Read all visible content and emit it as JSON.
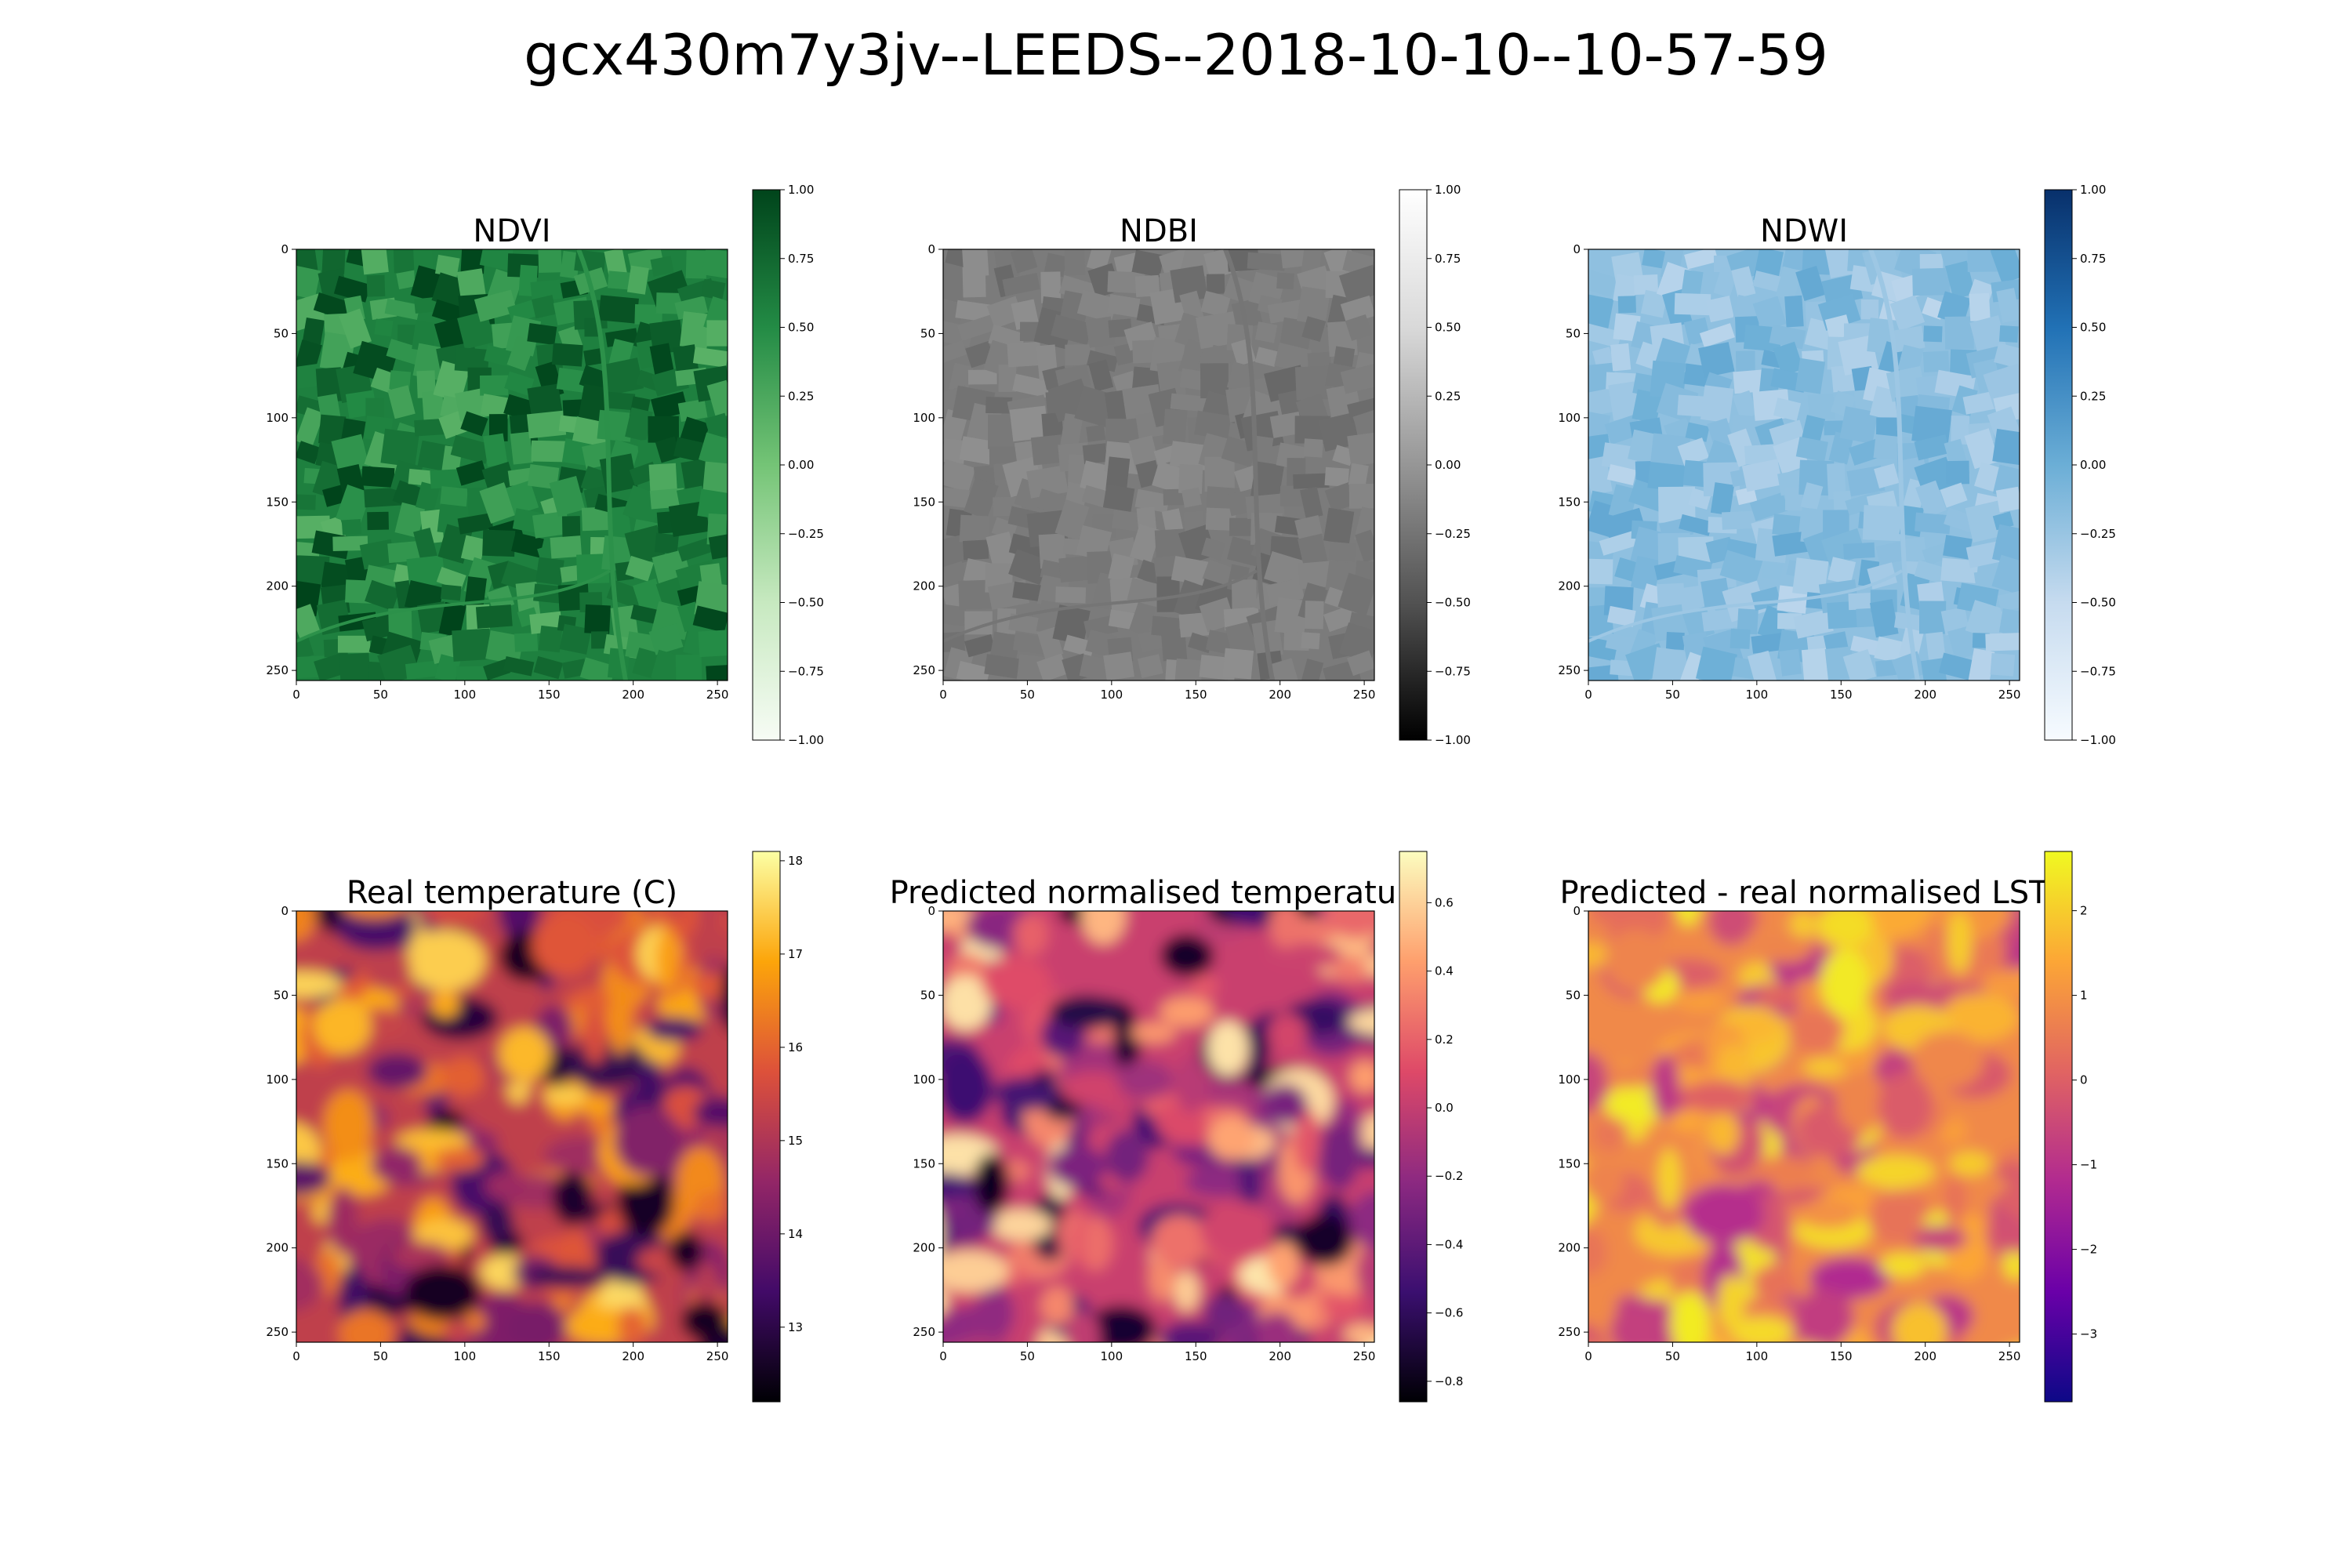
{
  "figure": {
    "title": "gcx430m7y3jv--LEEDS--2018-10-10--10-57-59"
  },
  "colormaps": {
    "Greens": [
      "#f7fcf5",
      "#c7e9c0",
      "#74c476",
      "#238b45",
      "#00441b"
    ],
    "Greys": [
      "#000000",
      "#525252",
      "#969696",
      "#d9d9d9",
      "#ffffff"
    ],
    "Blues": [
      "#f7fbff",
      "#c6dbef",
      "#6baed6",
      "#2171b5",
      "#08306b"
    ],
    "inferno": [
      "#000004",
      "#420a68",
      "#932667",
      "#dd513a",
      "#fca50a",
      "#fcffa4"
    ],
    "magma": [
      "#000004",
      "#3b0f70",
      "#8c2981",
      "#de4968",
      "#fe9f6d",
      "#fcfdbf"
    ],
    "plasma": [
      "#0d0887",
      "#6a00a8",
      "#b12a90",
      "#e16462",
      "#fca636",
      "#f0f921"
    ]
  },
  "chart_data": [
    {
      "type": "heatmap",
      "title": "NDVI",
      "colormap": "Greens",
      "map_style": "fields",
      "vmin": -1.0,
      "vmax": 1.0,
      "level_range": [
        0.15,
        1.0
      ],
      "xlim": [
        0,
        256
      ],
      "ylim": [
        256,
        0
      ],
      "xticks": [
        "0",
        "50",
        "100",
        "150",
        "200",
        "250"
      ],
      "yticks": [
        "0",
        "50",
        "100",
        "150",
        "200",
        "250"
      ],
      "colorbar_ticks": [
        "1.00",
        "0.75",
        "0.50",
        "0.25",
        "0.00",
        "−0.25",
        "−0.50",
        "−0.75",
        "−1.00"
      ]
    },
    {
      "type": "heatmap",
      "title": "NDBI",
      "colormap": "Greys",
      "map_style": "fields",
      "vmin": -1.0,
      "vmax": 1.0,
      "level_range": [
        -0.35,
        -0.05
      ],
      "xlim": [
        0,
        256
      ],
      "ylim": [
        256,
        0
      ],
      "xticks": [
        "0",
        "50",
        "100",
        "150",
        "200",
        "250"
      ],
      "yticks": [
        "0",
        "50",
        "100",
        "150",
        "200",
        "250"
      ],
      "colorbar_ticks": [
        "1.00",
        "0.75",
        "0.50",
        "0.25",
        "0.00",
        "−0.25",
        "−0.50",
        "−0.75",
        "−1.00"
      ]
    },
    {
      "type": "heatmap",
      "title": "NDWI",
      "colormap": "Blues",
      "map_style": "fields",
      "vmin": -1.0,
      "vmax": 1.0,
      "level_range": [
        -0.45,
        0.05
      ],
      "xlim": [
        0,
        256
      ],
      "ylim": [
        256,
        0
      ],
      "xticks": [
        "0",
        "50",
        "100",
        "150",
        "200",
        "250"
      ],
      "yticks": [
        "0",
        "50",
        "100",
        "150",
        "200",
        "250"
      ],
      "colorbar_ticks": [
        "1.00",
        "0.75",
        "0.50",
        "0.25",
        "0.00",
        "−0.25",
        "−0.50",
        "−0.75",
        "−1.00"
      ]
    },
    {
      "type": "heatmap",
      "title": "Real temperature (C)",
      "colormap": "inferno",
      "map_style": "blobs",
      "vmin": 12.2,
      "vmax": 18.1,
      "level_range": [
        12.4,
        17.6
      ],
      "xlim": [
        0,
        256
      ],
      "ylim": [
        256,
        0
      ],
      "xticks": [
        "0",
        "50",
        "100",
        "150",
        "200",
        "250"
      ],
      "yticks": [
        "0",
        "50",
        "100",
        "150",
        "200",
        "250"
      ],
      "colorbar_ticks": [
        "18",
        "17",
        "16",
        "15",
        "14",
        "13"
      ],
      "colorbar_tick_values": [
        18,
        17,
        16,
        15,
        14,
        13
      ]
    },
    {
      "type": "heatmap",
      "title": "Predicted normalised temperature",
      "colormap": "magma",
      "map_style": "blobs",
      "vmin": -0.86,
      "vmax": 0.75,
      "level_range": [
        -0.8,
        0.7
      ],
      "xlim": [
        0,
        256
      ],
      "ylim": [
        256,
        0
      ],
      "xticks": [
        "0",
        "50",
        "100",
        "150",
        "200",
        "250"
      ],
      "yticks": [
        "0",
        "50",
        "100",
        "150",
        "200",
        "250"
      ],
      "colorbar_ticks": [
        "0.6",
        "0.4",
        "0.2",
        "0.0",
        "−0.2",
        "−0.4",
        "−0.6",
        "−0.8"
      ],
      "colorbar_tick_values": [
        0.6,
        0.4,
        0.2,
        0.0,
        -0.2,
        -0.4,
        -0.6,
        -0.8
      ]
    },
    {
      "type": "heatmap",
      "title": "Predicted - real normalised LST",
      "colormap": "plasma",
      "map_style": "blobs",
      "vmin": -3.8,
      "vmax": 2.7,
      "level_range": [
        -1.2,
        2.5
      ],
      "xlim": [
        0,
        256
      ],
      "ylim": [
        256,
        0
      ],
      "xticks": [
        "0",
        "50",
        "100",
        "150",
        "200",
        "250"
      ],
      "yticks": [
        "0",
        "50",
        "100",
        "150",
        "200",
        "250"
      ],
      "colorbar_ticks": [
        "2",
        "1",
        "0",
        "−1",
        "−2",
        "−3"
      ],
      "colorbar_tick_values": [
        2,
        1,
        0,
        -1,
        -2,
        -3
      ]
    }
  ]
}
